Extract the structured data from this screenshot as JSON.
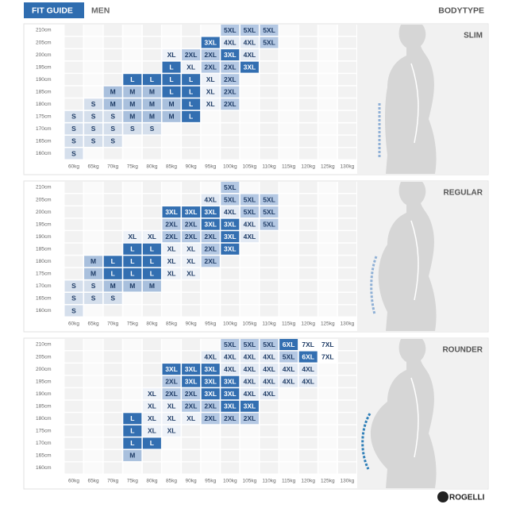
{
  "header": {
    "tag": "FIT GUIDE",
    "title": "MEN",
    "right": "BODYTYPE"
  },
  "heights": [
    "210cm",
    "205cm",
    "200cm",
    "195cm",
    "190cm",
    "185cm",
    "180cm",
    "175cm",
    "170cm",
    "165cm",
    "160cm"
  ],
  "weights": [
    "60kg",
    "65kg",
    "70kg",
    "75kg",
    "80kg",
    "85kg",
    "90kg",
    "95kg",
    "100kg",
    "105kg",
    "110kg",
    "115kg",
    "120kg",
    "125kg",
    "130kg"
  ],
  "size_colors": {
    "S": "#d5dfec",
    "M": "#a9c0dd",
    "L": "#336fb1",
    "XL": "#eef2f8",
    "2XL": "#b4c8e3",
    "3XL": "#336fb1",
    "4XL": "#e3eaf4",
    "5XL": "#b4c8e3",
    "6XL": "#336fb1",
    "7XL": "#ffffff"
  },
  "panels": [
    {
      "label": "SLIM",
      "rows": [
        [
          null,
          null,
          null,
          null,
          null,
          null,
          null,
          null,
          "5XL",
          "5XL",
          "5XL",
          null,
          null,
          null,
          null
        ],
        [
          null,
          null,
          null,
          null,
          null,
          null,
          null,
          "3XL",
          "4XL",
          "4XL",
          "5XL",
          null,
          null,
          null,
          null
        ],
        [
          null,
          null,
          null,
          null,
          null,
          "XL",
          "2XL",
          "2XL",
          "3XL",
          "4XL",
          null,
          null,
          null,
          null,
          null
        ],
        [
          null,
          null,
          null,
          null,
          null,
          "L",
          "XL",
          "2XL",
          "2XL",
          "3XL",
          null,
          null,
          null,
          null,
          null
        ],
        [
          null,
          null,
          null,
          "L",
          "L",
          "L",
          "L",
          "XL",
          "2XL",
          null,
          null,
          null,
          null,
          null,
          null
        ],
        [
          null,
          null,
          "M",
          "M",
          "M",
          "L",
          "L",
          "XL",
          "2XL",
          null,
          null,
          null,
          null,
          null,
          null
        ],
        [
          null,
          "S",
          "M",
          "M",
          "M",
          "M",
          "L",
          "XL",
          "2XL",
          null,
          null,
          null,
          null,
          null,
          null
        ],
        [
          "S",
          "S",
          "S",
          "M",
          "M",
          "M",
          "L",
          null,
          null,
          null,
          null,
          null,
          null,
          null,
          null
        ],
        [
          "S",
          "S",
          "S",
          "S",
          "S",
          null,
          null,
          null,
          null,
          null,
          null,
          null,
          null,
          null,
          null
        ],
        [
          "S",
          "S",
          "S",
          null,
          null,
          null,
          null,
          null,
          null,
          null,
          null,
          null,
          null,
          null,
          null
        ],
        [
          "S",
          null,
          null,
          null,
          null,
          null,
          null,
          null,
          null,
          null,
          null,
          null,
          null,
          null,
          null
        ]
      ]
    },
    {
      "label": "REGULAR",
      "rows": [
        [
          null,
          null,
          null,
          null,
          null,
          null,
          null,
          null,
          "5XL",
          null,
          null,
          null,
          null,
          null,
          null
        ],
        [
          null,
          null,
          null,
          null,
          null,
          null,
          null,
          "4XL",
          "5XL",
          "5XL",
          "5XL",
          null,
          null,
          null,
          null
        ],
        [
          null,
          null,
          null,
          null,
          null,
          "3XL",
          "3XL",
          "3XL",
          "4XL",
          "5XL",
          "5XL",
          null,
          null,
          null,
          null
        ],
        [
          null,
          null,
          null,
          null,
          null,
          "2XL",
          "2XL",
          "3XL",
          "3XL",
          "4XL",
          "5XL",
          null,
          null,
          null,
          null
        ],
        [
          null,
          null,
          null,
          "XL",
          "XL",
          "2XL",
          "2XL",
          "2XL",
          "3XL",
          "4XL",
          null,
          null,
          null,
          null,
          null
        ],
        [
          null,
          null,
          null,
          "L",
          "L",
          "XL",
          "XL",
          "2XL",
          "3XL",
          null,
          null,
          null,
          null,
          null,
          null
        ],
        [
          null,
          "M",
          "L",
          "L",
          "L",
          "XL",
          "XL",
          "2XL",
          null,
          null,
          null,
          null,
          null,
          null,
          null
        ],
        [
          null,
          "M",
          "L",
          "L",
          "L",
          "XL",
          "XL",
          null,
          null,
          null,
          null,
          null,
          null,
          null,
          null
        ],
        [
          "S",
          "S",
          "M",
          "M",
          "M",
          null,
          null,
          null,
          null,
          null,
          null,
          null,
          null,
          null,
          null
        ],
        [
          "S",
          "S",
          "S",
          null,
          null,
          null,
          null,
          null,
          null,
          null,
          null,
          null,
          null,
          null,
          null
        ],
        [
          "S",
          null,
          null,
          null,
          null,
          null,
          null,
          null,
          null,
          null,
          null,
          null,
          null,
          null,
          null
        ]
      ]
    },
    {
      "label": "ROUNDER",
      "rows": [
        [
          null,
          null,
          null,
          null,
          null,
          null,
          null,
          null,
          "5XL",
          "5XL",
          "5XL",
          "6XL",
          "7XL",
          "7XL",
          null
        ],
        [
          null,
          null,
          null,
          null,
          null,
          null,
          null,
          "4XL",
          "4XL",
          "4XL",
          "4XL",
          "5XL",
          "6XL",
          "7XL",
          null
        ],
        [
          null,
          null,
          null,
          null,
          null,
          "3XL",
          "3XL",
          "3XL",
          "4XL",
          "4XL",
          "4XL",
          "4XL",
          "4XL",
          null,
          null
        ],
        [
          null,
          null,
          null,
          null,
          null,
          "2XL",
          "3XL",
          "3XL",
          "3XL",
          "4XL",
          "4XL",
          "4XL",
          "4XL",
          null,
          null
        ],
        [
          null,
          null,
          null,
          null,
          "XL",
          "2XL",
          "2XL",
          "3XL",
          "3XL",
          "4XL",
          "4XL",
          null,
          null,
          null,
          null
        ],
        [
          null,
          null,
          null,
          null,
          "XL",
          "XL",
          "2XL",
          "2XL",
          "3XL",
          "3XL",
          null,
          null,
          null,
          null,
          null
        ],
        [
          null,
          null,
          null,
          "L",
          "XL",
          "XL",
          "XL",
          "2XL",
          "2XL",
          "2XL",
          null,
          null,
          null,
          null,
          null
        ],
        [
          null,
          null,
          null,
          "L",
          "XL",
          "XL",
          null,
          null,
          null,
          null,
          null,
          null,
          null,
          null,
          null
        ],
        [
          null,
          null,
          null,
          "L",
          "L",
          null,
          null,
          null,
          null,
          null,
          null,
          null,
          null,
          null,
          null
        ],
        [
          null,
          null,
          null,
          "M",
          null,
          null,
          null,
          null,
          null,
          null,
          null,
          null,
          null,
          null,
          null
        ],
        [
          null,
          null,
          null,
          null,
          null,
          null,
          null,
          null,
          null,
          null,
          null,
          null,
          null,
          null,
          null
        ]
      ]
    }
  ],
  "logo": "ROGELLI"
}
